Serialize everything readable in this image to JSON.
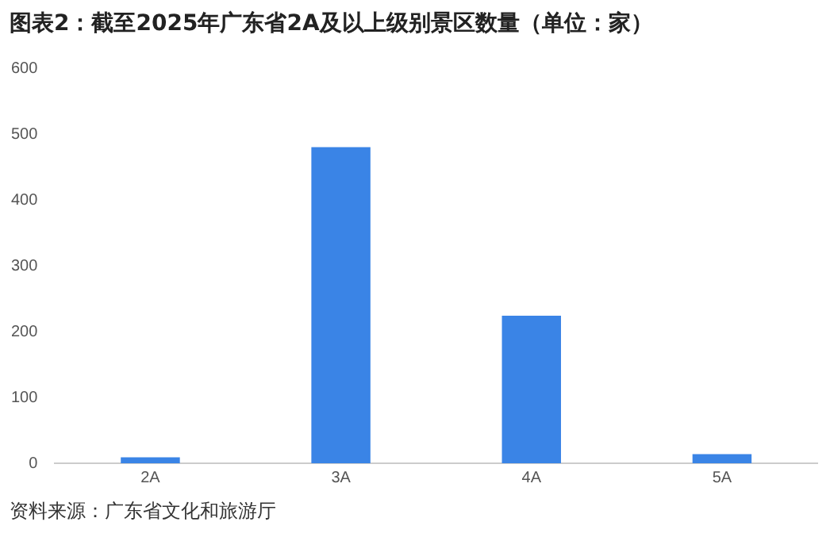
{
  "chart_data": {
    "type": "bar",
    "title": "图表2：截至2025年广东省2A及以上级别景区数量（单位：家）",
    "categories": [
      "2A",
      "3A",
      "4A",
      "5A"
    ],
    "values": [
      9,
      480,
      224,
      14
    ],
    "color": "#3a84e6",
    "ylim": [
      0,
      600
    ],
    "yticks": [
      0,
      100,
      200,
      300,
      400,
      500,
      600
    ],
    "grid": false,
    "annotations": [
      "资料来源：广东省文化和旅游厅"
    ]
  }
}
